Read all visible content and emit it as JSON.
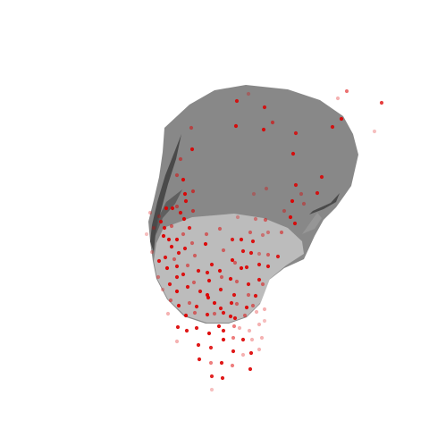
{
  "scene": {
    "surface_colors": {
      "dark_face": "#888888",
      "light_face": "#bcbcbc",
      "edge_shadow": "#444444"
    },
    "point_color": "#dd0000"
  },
  "points": [
    [
      265,
      113,
      0.85
    ],
    [
      278,
      105,
      0.3
    ],
    [
      296,
      120,
      0.85
    ],
    [
      388,
      102,
      0.55
    ],
    [
      378,
      110,
      0.3
    ],
    [
      427,
      115,
      0.75
    ],
    [
      382,
      133,
      0.9
    ],
    [
      372,
      142,
      0.85
    ],
    [
      419,
      147,
      0.25
    ],
    [
      305,
      137,
      0.6
    ],
    [
      264,
      141,
      0.9
    ],
    [
      295,
      145,
      0.9
    ],
    [
      214,
      143,
      0.5
    ],
    [
      331,
      149,
      0.8
    ],
    [
      215,
      167,
      0.9
    ],
    [
      328,
      172,
      0.9
    ],
    [
      202,
      178,
      0.5
    ],
    [
      205,
      201,
      0.95
    ],
    [
      198,
      196,
      0.5
    ],
    [
      216,
      214,
      0.6
    ],
    [
      207,
      217,
      0.95
    ],
    [
      208,
      225,
      0.9
    ],
    [
      198,
      231,
      0.5
    ],
    [
      186,
      233,
      0.95
    ],
    [
      193,
      233,
      0.9
    ],
    [
      202,
      238,
      0.9
    ],
    [
      216,
      236,
      0.6
    ],
    [
      331,
      207,
      0.85
    ],
    [
      337,
      217,
      0.4
    ],
    [
      355,
      216,
      0.85
    ],
    [
      360,
      198,
      0.85
    ],
    [
      327,
      225,
      0.95
    ],
    [
      340,
      228,
      0.4
    ],
    [
      318,
      236,
      0.4
    ],
    [
      325,
      243,
      0.95
    ],
    [
      330,
      250,
      0.9
    ],
    [
      298,
      211,
      0.35
    ],
    [
      284,
      217,
      0.3
    ],
    [
      266,
      243,
      0.3
    ],
    [
      286,
      245,
      0.4
    ],
    [
      297,
      246,
      0.5
    ],
    [
      168,
      238,
      0.3
    ],
    [
      178,
      242,
      0.3
    ],
    [
      180,
      248,
      0.9
    ],
    [
      184,
      255,
      0.9
    ],
    [
      192,
      253,
      0.5
    ],
    [
      206,
      245,
      0.95
    ],
    [
      212,
      255,
      0.85
    ],
    [
      172,
      255,
      0.3
    ],
    [
      164,
      262,
      0.25
    ],
    [
      183,
      264,
      0.95
    ],
    [
      189,
      268,
      0.95
    ],
    [
      198,
      268,
      0.95
    ],
    [
      205,
      262,
      0.5
    ],
    [
      215,
      272,
      0.5
    ],
    [
      231,
      262,
      0.5
    ],
    [
      246,
      256,
      0.5
    ],
    [
      260,
      268,
      0.85
    ],
    [
      280,
      260,
      0.5
    ],
    [
      192,
      276,
      0.95
    ],
    [
      200,
      283,
      0.9
    ],
    [
      207,
      278,
      0.9
    ],
    [
      230,
      273,
      0.95
    ],
    [
      270,
      268,
      0.95
    ],
    [
      283,
      270,
      0.9
    ],
    [
      294,
      263,
      0.4
    ],
    [
      300,
      260,
      0.4
    ],
    [
      315,
      260,
      0.5
    ],
    [
      170,
      282,
      0.3
    ],
    [
      178,
      292,
      0.9
    ],
    [
      185,
      288,
      0.9
    ],
    [
      195,
      290,
      0.5
    ],
    [
      218,
      286,
      0.5
    ],
    [
      237,
      296,
      0.9
    ],
    [
      250,
      280,
      0.5
    ],
    [
      263,
      294,
      0.5
    ],
    [
      272,
      281,
      0.9
    ],
    [
      281,
      283,
      0.9
    ],
    [
      290,
      284,
      0.4
    ],
    [
      300,
      285,
      0.5
    ],
    [
      311,
      287,
      0.85
    ],
    [
      187,
      300,
      0.95
    ],
    [
      198,
      298,
      0.9
    ],
    [
      210,
      297,
      0.5
    ],
    [
      222,
      303,
      0.9
    ],
    [
      232,
      305,
      0.9
    ],
    [
      246,
      303,
      0.95
    ],
    [
      260,
      291,
      0.95
    ],
    [
      270,
      300,
      0.95
    ],
    [
      276,
      299,
      0.9
    ],
    [
      290,
      296,
      0.9
    ],
    [
      300,
      298,
      0.9
    ],
    [
      177,
      310,
      0.4
    ],
    [
      190,
      318,
      0.9
    ],
    [
      198,
      310,
      0.9
    ],
    [
      205,
      307,
      0.9
    ],
    [
      217,
      316,
      0.5
    ],
    [
      234,
      314,
      0.95
    ],
    [
      248,
      310,
      0.5
    ],
    [
      258,
      312,
      0.95
    ],
    [
      265,
      315,
      0.5
    ],
    [
      278,
      318,
      0.9
    ],
    [
      290,
      313,
      0.9
    ],
    [
      182,
      324,
      0.3
    ],
    [
      198,
      326,
      0.95
    ],
    [
      210,
      321,
      0.9
    ],
    [
      224,
      326,
      0.9
    ],
    [
      232,
      330,
      0.95
    ],
    [
      247,
      324,
      0.9
    ],
    [
      262,
      330,
      0.9
    ],
    [
      278,
      330,
      0.5
    ],
    [
      286,
      331,
      0.9
    ],
    [
      294,
      318,
      0.5
    ],
    [
      191,
      336,
      0.5
    ],
    [
      200,
      342,
      0.95
    ],
    [
      212,
      339,
      0.5
    ],
    [
      220,
      343,
      0.9
    ],
    [
      233,
      333,
      0.95
    ],
    [
      240,
      339,
      0.95
    ],
    [
      247,
      345,
      0.9
    ],
    [
      259,
      339,
      0.9
    ],
    [
      265,
      340,
      0.5
    ],
    [
      276,
      344,
      0.95
    ],
    [
      283,
      342,
      0.5
    ],
    [
      188,
      351,
      0.3
    ],
    [
      208,
      353,
      0.95
    ],
    [
      218,
      350,
      0.5
    ],
    [
      232,
      352,
      0.9
    ],
    [
      240,
      351,
      0.5
    ],
    [
      250,
      350,
      0.9
    ],
    [
      258,
      354,
      0.95
    ],
    [
      263,
      356,
      0.9
    ],
    [
      274,
      353,
      0.5
    ],
    [
      287,
      349,
      0.3
    ],
    [
      296,
      346,
      0.3
    ],
    [
      199,
      366,
      0.9
    ],
    [
      209,
      370,
      0.9
    ],
    [
      220,
      367,
      0.9
    ],
    [
      234,
      373,
      0.95
    ],
    [
      245,
      365,
      0.95
    ],
    [
      250,
      370,
      0.9
    ],
    [
      262,
      365,
      0.5
    ],
    [
      268,
      367,
      0.3
    ],
    [
      279,
      370,
      0.3
    ],
    [
      290,
      363,
      0.3
    ],
    [
      296,
      359,
      0.25
    ],
    [
      222,
      386,
      0.9
    ],
    [
      236,
      389,
      0.85
    ],
    [
      250,
      380,
      0.95
    ],
    [
      261,
      378,
      0.5
    ],
    [
      272,
      380,
      0.9
    ],
    [
      282,
      380,
      0.3
    ],
    [
      293,
      378,
      0.3
    ],
    [
      198,
      382,
      0.3
    ],
    [
      223,
      402,
      0.9
    ],
    [
      236,
      406,
      0.5
    ],
    [
      248,
      406,
      0.9
    ],
    [
      261,
      393,
      0.9
    ],
    [
      272,
      397,
      0.3
    ],
    [
      281,
      395,
      0.9
    ],
    [
      290,
      391,
      0.3
    ],
    [
      237,
      421,
      0.85
    ],
    [
      249,
      423,
      0.9
    ],
    [
      260,
      409,
      0.5
    ],
    [
      280,
      413,
      0.9
    ],
    [
      237,
      436,
      0.25
    ]
  ]
}
